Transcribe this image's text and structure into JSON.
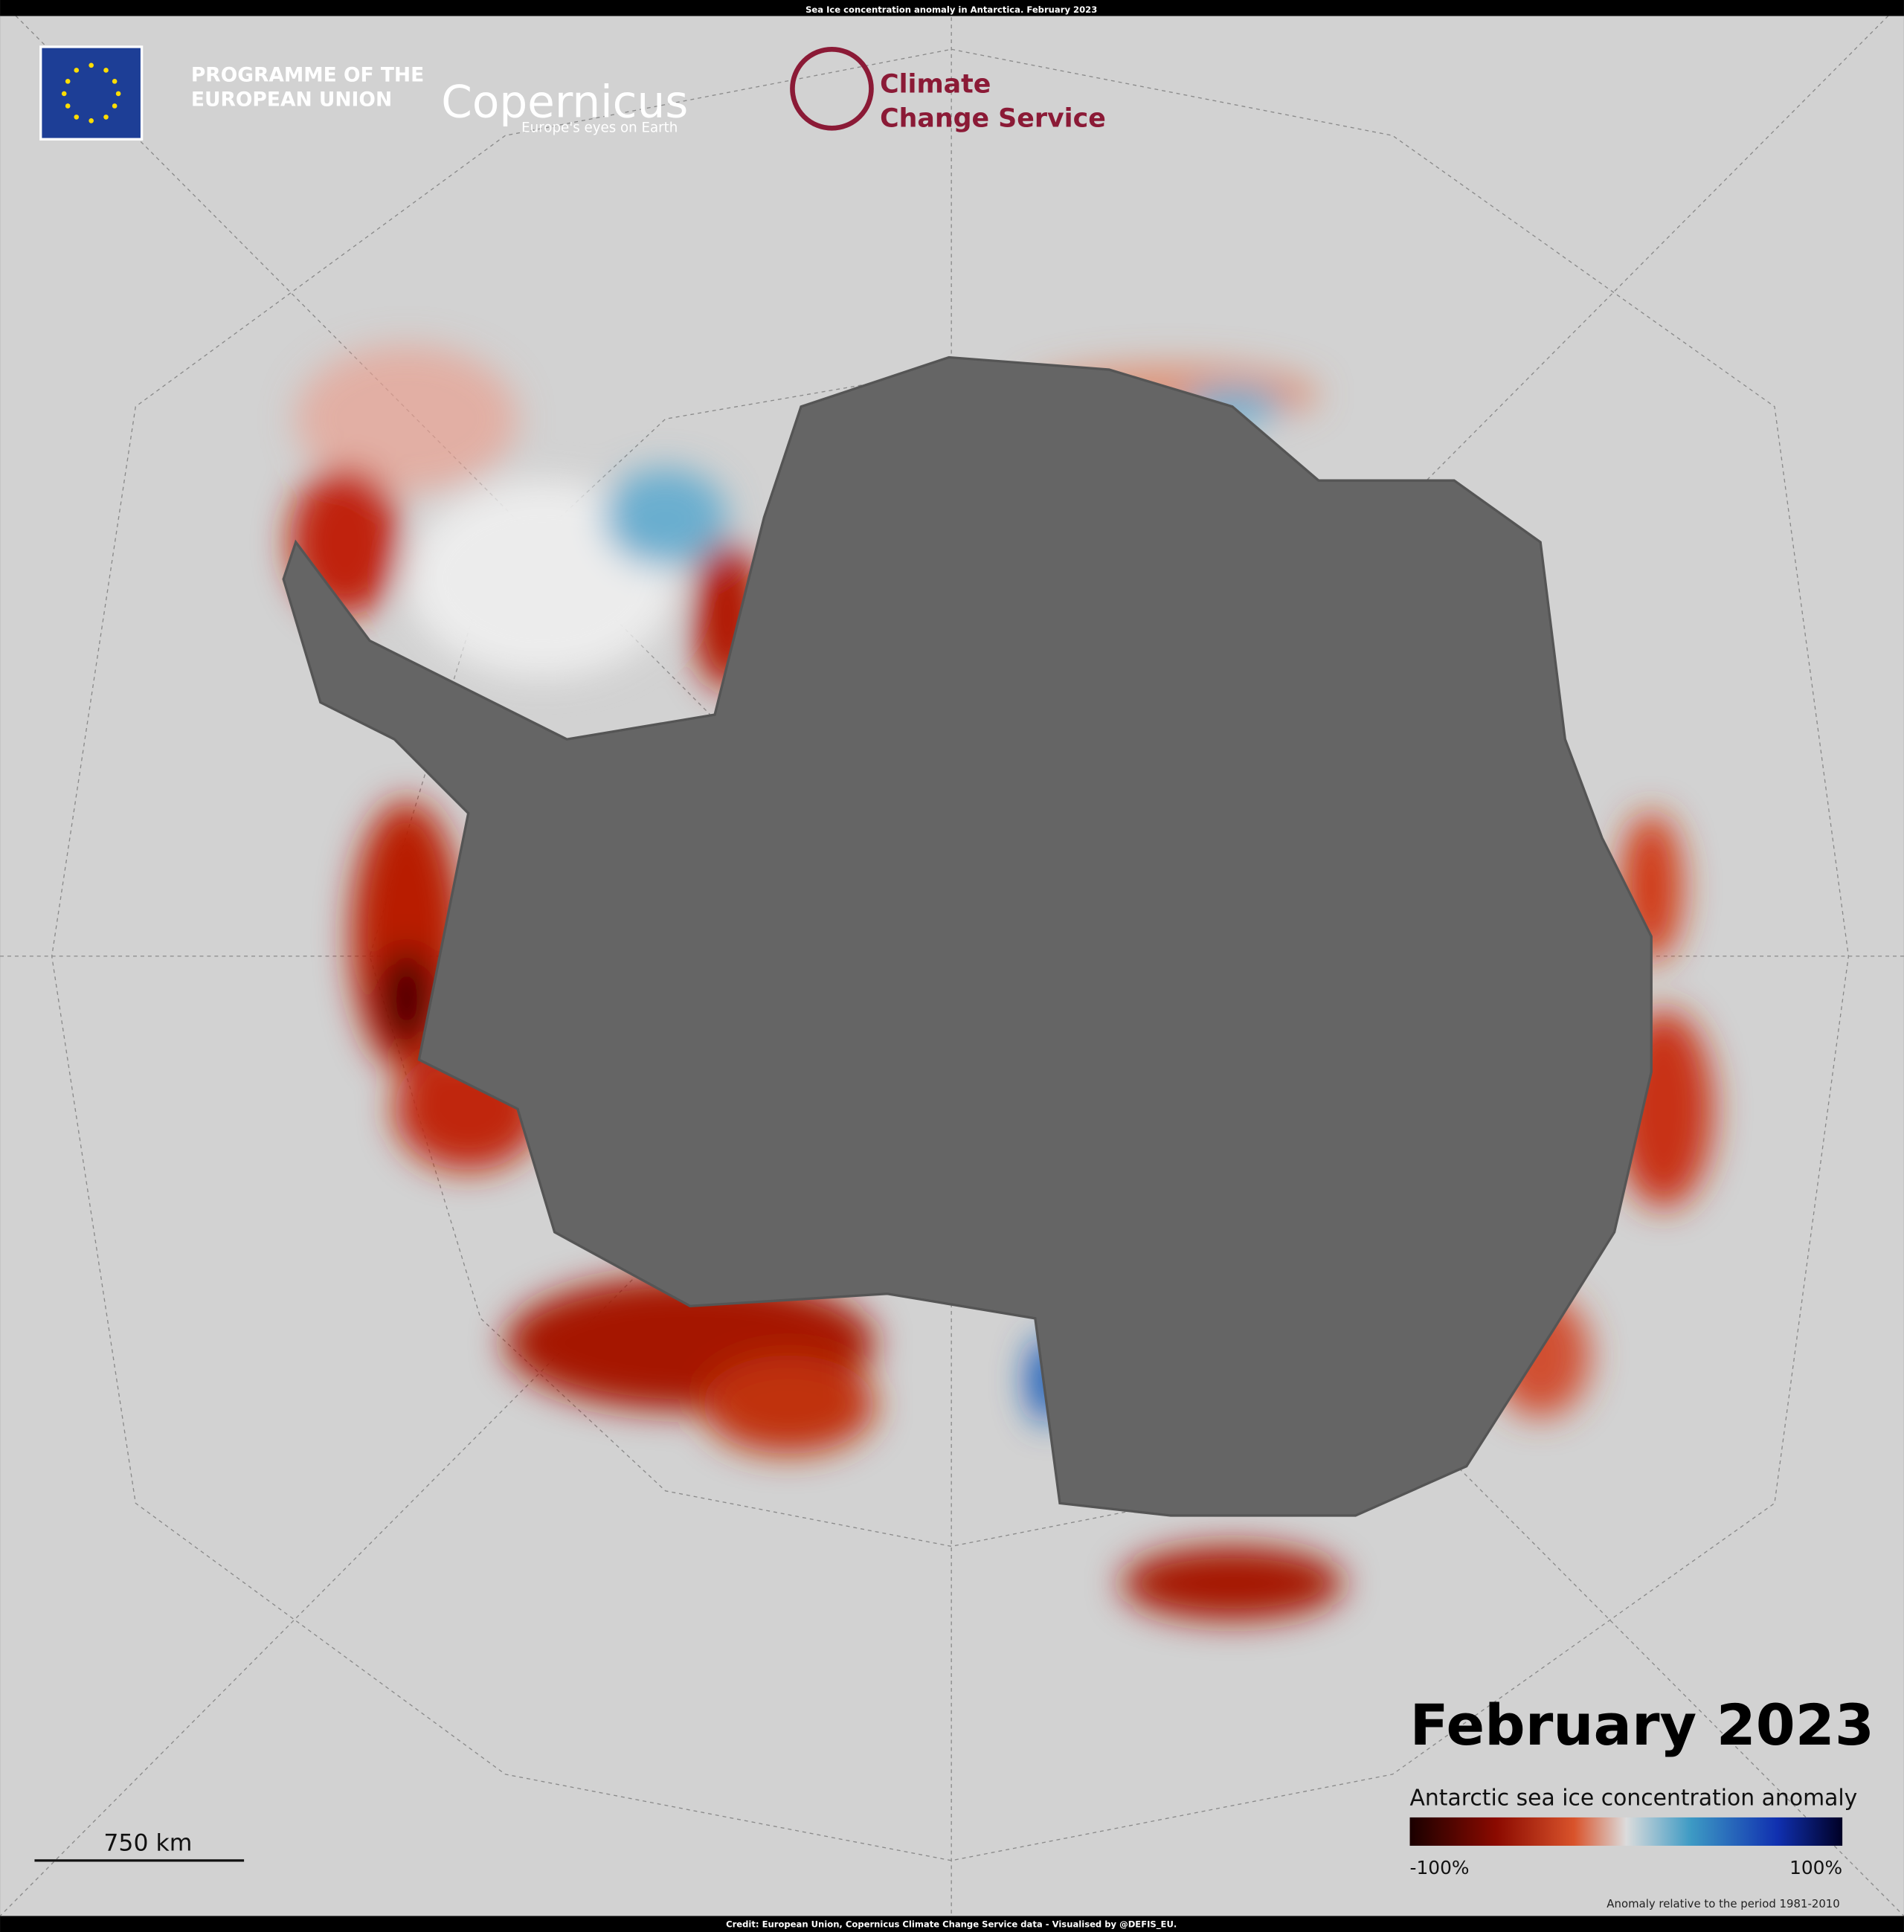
{
  "header": {
    "title": "Sea Ice concentration anomaly in Antarctica. February 2023"
  },
  "logos": {
    "eu_line1": "PROGRAMME OF THE",
    "eu_line2": "EUROPEAN UNION",
    "copernicus": "Copernicus",
    "copernicus_tagline": "Europe's eyes on Earth",
    "c3s_line1": "Climate",
    "c3s_line2": "Change Service"
  },
  "map": {
    "date": "February 2023",
    "legend_title": "Antarctic sea ice concentration anomaly",
    "legend_min": "-100%",
    "legend_max": "100%",
    "note": "Anomaly relative to the period 1981-2010",
    "scale_bar": "750 km"
  },
  "footer": {
    "credit": "Credit: European Union, Copernicus  Climate Change Service data - Visualised by @DEFIS_EU."
  }
}
